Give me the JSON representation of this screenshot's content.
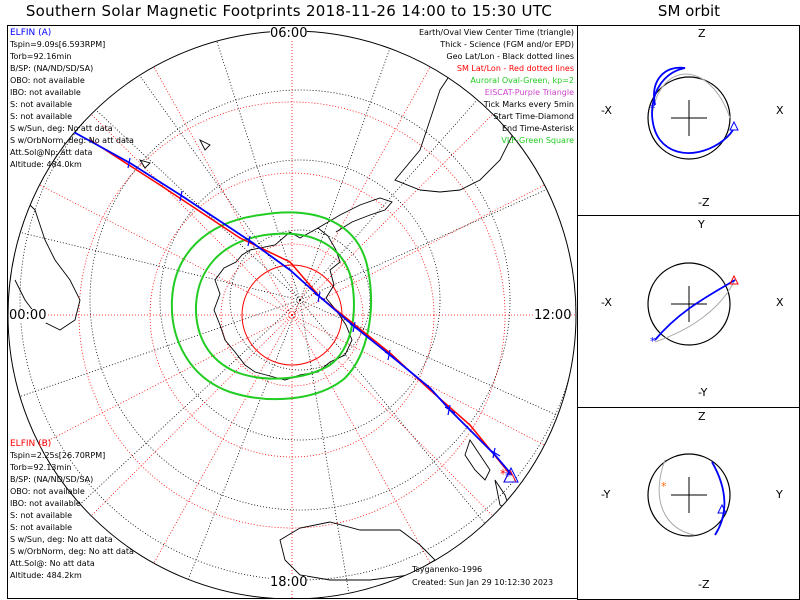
{
  "title": "Southern Solar Magnetic Footprints 2018-11-26 14:00 to 15:30 UTC",
  "orbit_title": "SM orbit",
  "map": {
    "mlt_labels": {
      "top": "06:00",
      "left": "00:00",
      "right": "12:00",
      "bottom": "18:00"
    },
    "elfin_a": {
      "heading": "ELFIN (A)",
      "lines": [
        "Tspin=9.09s[6.593RPM]",
        "Torb=92.16min",
        "B/SP: (NA/ND/SD/SA)",
        "OBO: not available",
        "IBO: not available",
        "S: not available",
        "S: not available",
        "S w/Sun, deg: No att data",
        "S w/OrbNorm, deg: No att data",
        "Att.Sol@Np: att data",
        "Altitude: 484.0km"
      ]
    },
    "elfin_b": {
      "heading": "ELFIN (B)",
      "lines": [
        "Tspin=2.25s[26.70RPM]",
        "Torb=92.13min",
        "B/SP: (NA/ND/SD/SA)",
        "OBO: not available",
        "IBO: not available",
        "S: not available",
        "S: not available",
        "S w/Sun, deg: No att data",
        "S w/OrbNorm, deg: No att data",
        "Att.Sol@: No att data",
        "Altitude: 484.2km"
      ]
    },
    "legend": [
      {
        "text": "Earth/Oval View Center Time (triangle)",
        "color": "#000000"
      },
      {
        "text": "Thick - Science (FGM and/or EPD)",
        "color": "#000000"
      },
      {
        "text": "Geo Lat/Lon - Black dotted lines",
        "color": "#000000"
      },
      {
        "text": "SM Lat/Lon - Red dotted lines",
        "color": "#ff0000"
      },
      {
        "text": "Auroral Oval-Green, kp=2",
        "color": "#22cc22"
      },
      {
        "text": "EISCAT-Purple Triangle",
        "color": "#cc44cc"
      },
      {
        "text": "Tick Marks every 5min",
        "color": "#000000"
      },
      {
        "text": "Start Time-Diamond",
        "color": "#000000"
      },
      {
        "text": "End Time-Asterisk",
        "color": "#000000"
      },
      {
        "text": "VLF-Green Square",
        "color": "#22cc22"
      }
    ],
    "model": "Tsyganenko-1996",
    "created": "Created: Sun Jan 29 10:12:30 2023"
  },
  "orbit_panels": [
    {
      "top": "Z",
      "bottom": "-Z",
      "left": "-X",
      "right": "X"
    },
    {
      "top": "Y",
      "bottom": "-Y",
      "left": "-X",
      "right": "X"
    },
    {
      "top": "Z",
      "bottom": "-Z",
      "left": "-Y",
      "right": "Y"
    }
  ],
  "colors": {
    "elfin_a": "#0000ff",
    "elfin_b": "#ff0000",
    "oval": "#22cc22",
    "orbit_shadow": "#aaaaaa"
  }
}
